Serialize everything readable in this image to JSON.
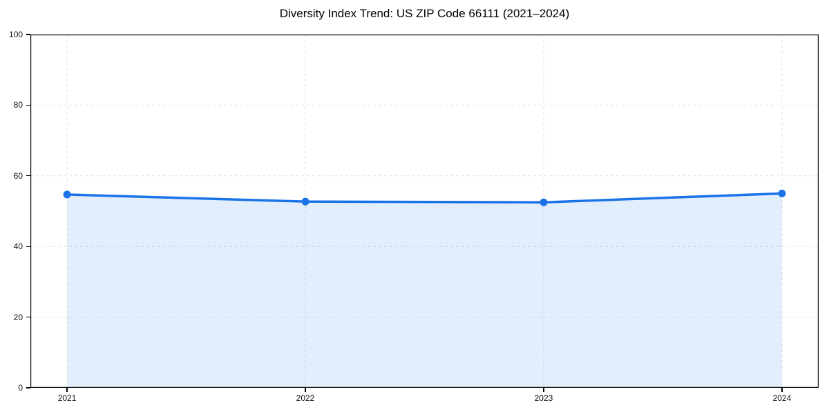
{
  "chart_data": {
    "type": "area",
    "title": "Diversity Index Trend: US ZIP Code 66111 (2021–2024)",
    "categories": [
      "2021",
      "2022",
      "2023",
      "2024"
    ],
    "values": [
      54.7,
      52.7,
      52.5,
      55.0
    ],
    "series": [
      {
        "name": "Diversity Index",
        "values": [
          54.7,
          52.7,
          52.5,
          55.0
        ]
      }
    ],
    "xlabel": "",
    "ylabel": "",
    "ylim": [
      0,
      100
    ],
    "yticks": [
      0,
      20,
      40,
      60,
      80,
      100
    ],
    "xticks": [
      "2021",
      "2022",
      "2023",
      "2024"
    ],
    "grid": true,
    "grid_style": "dashed",
    "legend_position": "none",
    "x_margin_frac": 0.0465,
    "colors": {
      "line": "#1a73e8",
      "marker": "#1a73e8",
      "fill": "#1a73e8",
      "fill_opacity": 0.12,
      "grid": "#e2e2e2",
      "spine": "#000000",
      "tick_text": "#111111",
      "title_text": "#000000",
      "background": "#ffffff"
    }
  }
}
